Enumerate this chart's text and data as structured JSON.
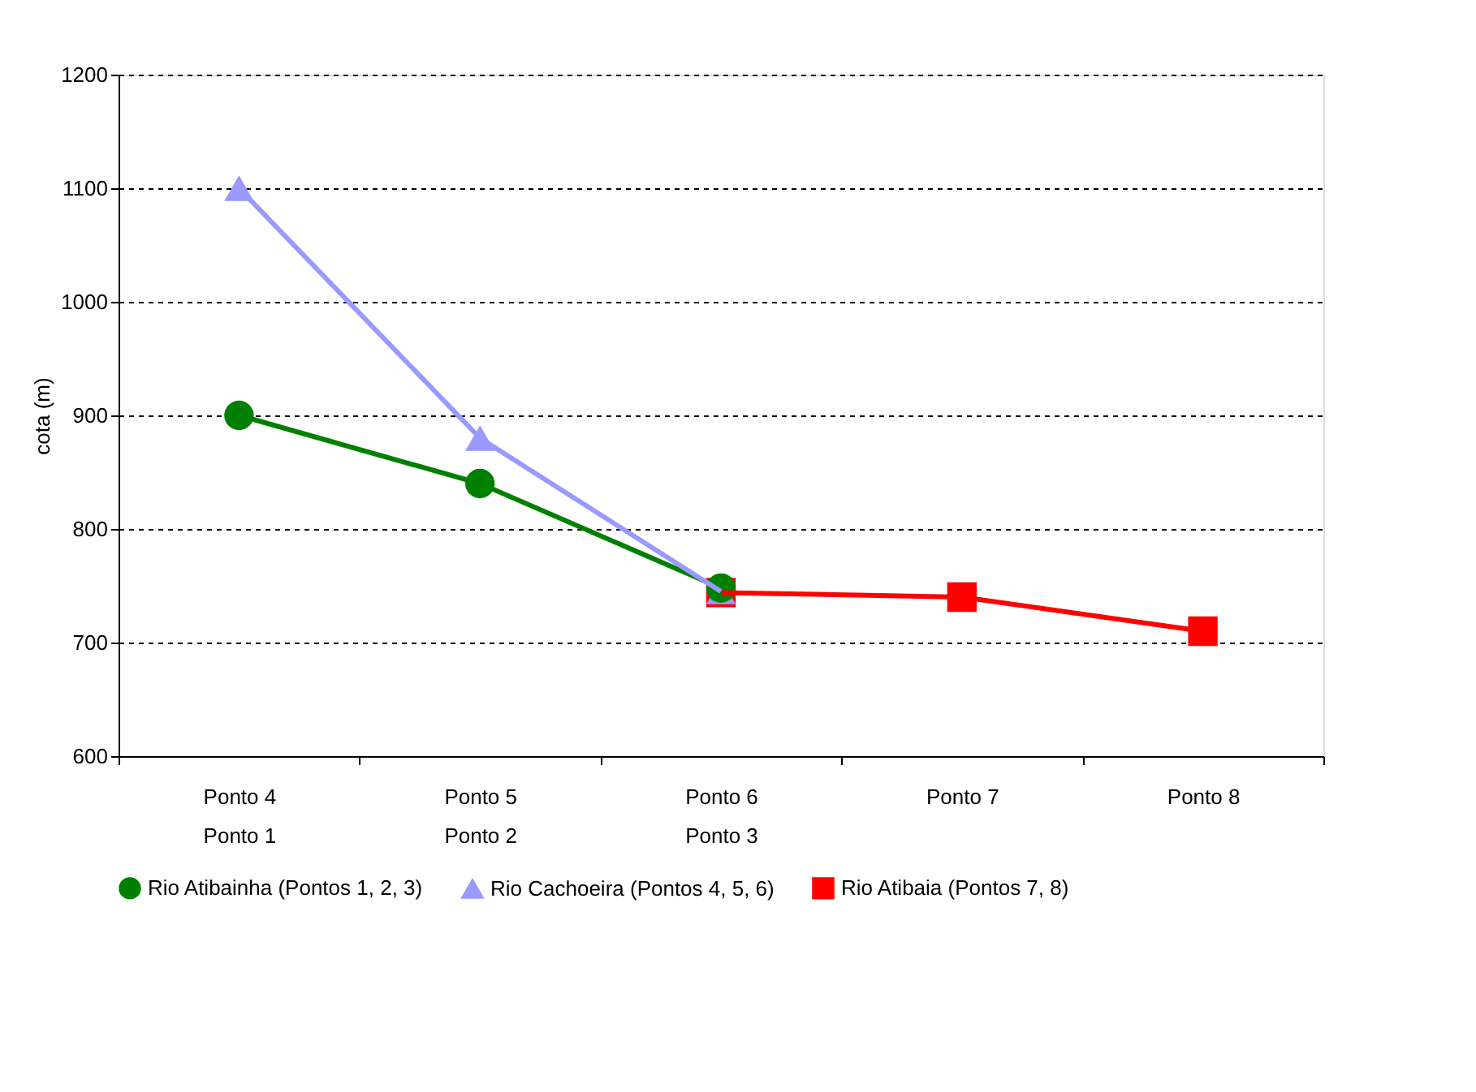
{
  "chart_data": {
    "type": "line",
    "ylabel": "cota (m)",
    "categories": [
      "Ponto 4\nPonto 1",
      "Ponto 5\nPonto 2",
      "Ponto 6\nPonto 3",
      "Ponto 7",
      "Ponto 8"
    ],
    "series": [
      {
        "name": "Rio Atibainha (Pontos 1, 2, 3)",
        "color": "#008000",
        "marker": "circle",
        "values": [
          900,
          840,
          748,
          null,
          null
        ]
      },
      {
        "name": "Rio Cachoeira (Pontos 4, 5, 6)",
        "color": "#9999ff",
        "marker": "triangle",
        "values": [
          1100,
          880,
          745,
          null,
          null
        ]
      },
      {
        "name": "Rio Atibaia (Pontos 7, 8)",
        "color": "#ff0000",
        "marker": "square",
        "values": [
          null,
          null,
          744,
          740,
          710
        ]
      }
    ],
    "ylim": [
      600,
      1200
    ],
    "yticks": [
      600,
      700,
      800,
      900,
      1000,
      1100,
      1200
    ],
    "grid": "y",
    "legend": "bottom",
    "line_style": "solid"
  }
}
